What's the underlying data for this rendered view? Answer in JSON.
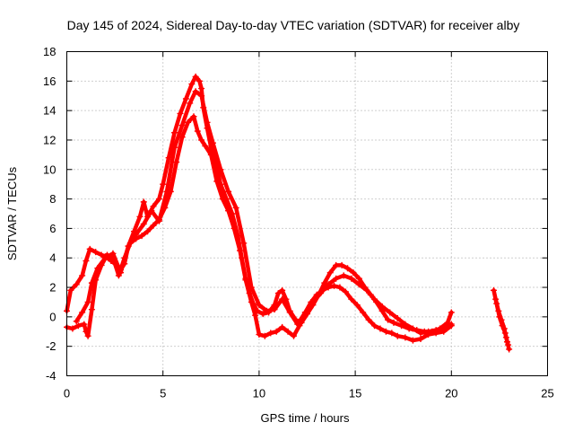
{
  "chart_data": {
    "type": "scatter",
    "title": "Day 145 of 2024, Sidereal Day-to-day VTEC variation (SDTVAR) for receiver alby",
    "xlabel": "GPS time / hours",
    "ylabel": "SDTVAR / TECUs",
    "xlim": [
      0,
      25
    ],
    "ylim": [
      -4,
      18
    ],
    "xticks": [
      0,
      5,
      10,
      15,
      20,
      25
    ],
    "yticks": [
      -4,
      -2,
      0,
      2,
      4,
      6,
      8,
      10,
      12,
      14,
      16,
      18
    ],
    "grid": true,
    "marker": "+",
    "color": "#ff0000",
    "series": [
      {
        "name": "trace-a",
        "x": [
          0.0,
          0.2,
          0.5,
          0.8,
          1.0,
          1.2,
          1.5,
          1.8,
          2.0,
          2.3,
          2.6,
          2.8,
          3.0,
          3.2,
          3.5,
          3.8,
          4.0,
          4.2,
          4.5,
          4.8,
          5.0,
          5.3,
          5.6,
          5.9,
          6.2,
          6.5,
          6.7,
          6.9,
          7.0,
          7.1,
          7.3,
          7.5,
          7.8,
          8.0,
          8.3,
          8.6,
          8.9,
          9.1,
          9.3,
          9.5,
          9.7,
          9.9,
          10.2,
          10.5,
          10.8,
          11.0,
          11.2,
          11.4,
          11.6,
          11.9,
          12.2,
          12.5,
          12.8,
          13.1,
          13.4,
          13.7,
          14.0,
          14.3,
          14.6,
          14.9,
          15.2,
          15.5,
          15.8,
          16.1,
          16.4,
          16.7,
          17.0,
          17.4,
          17.8,
          18.2,
          18.6,
          19.0,
          19.4,
          19.8,
          20.0
        ],
        "y": [
          0.4,
          1.8,
          2.2,
          2.8,
          3.8,
          4.6,
          4.4,
          4.2,
          4.1,
          3.8,
          3.5,
          3.2,
          3.6,
          4.8,
          5.8,
          6.8,
          7.8,
          6.8,
          7.5,
          8.0,
          9.0,
          10.8,
          12.5,
          13.8,
          14.8,
          15.8,
          16.3,
          16.0,
          15.5,
          14.2,
          12.8,
          11.5,
          10.2,
          9.0,
          8.0,
          7.0,
          5.5,
          4.0,
          2.6,
          1.6,
          0.9,
          0.4,
          0.2,
          0.3,
          0.8,
          1.6,
          1.8,
          1.2,
          0.4,
          -0.2,
          -0.4,
          0.2,
          0.8,
          1.5,
          2.3,
          3.0,
          3.5,
          3.5,
          3.3,
          3.0,
          2.6,
          2.0,
          1.5,
          1.0,
          0.4,
          -0.2,
          -0.4,
          -0.6,
          -0.8,
          -0.9,
          -1.0,
          -1.0,
          -0.8,
          -0.4,
          0.3
        ]
      },
      {
        "name": "trace-b",
        "x": [
          0.0,
          0.3,
          0.6,
          0.9,
          1.0,
          1.1,
          1.3,
          1.5,
          1.8,
          2.1,
          2.4,
          2.7,
          3.0,
          3.3,
          3.6,
          3.9,
          4.2,
          4.5,
          4.8,
          5.1,
          5.4,
          5.7,
          6.0,
          6.3,
          6.6,
          6.8,
          7.0,
          7.2,
          7.5,
          7.8,
          8.1,
          8.4,
          8.7,
          9.0,
          9.3,
          9.6,
          9.8,
          10.0,
          10.3,
          10.6,
          10.9,
          11.2,
          11.5,
          11.8,
          12.1,
          12.4,
          12.7,
          13.0,
          13.3,
          13.6,
          13.9,
          14.2,
          14.5,
          14.8,
          15.1,
          15.4,
          15.7,
          16.0,
          16.3,
          16.6,
          16.9,
          17.2,
          17.6,
          18.0,
          18.4,
          18.8,
          19.2,
          19.6,
          20.0
        ],
        "y": [
          -0.7,
          -0.8,
          -0.6,
          -0.5,
          -1.0,
          -1.3,
          0.5,
          2.5,
          3.5,
          4.2,
          4.0,
          2.8,
          4.0,
          5.0,
          5.3,
          5.5,
          5.8,
          6.2,
          6.6,
          7.4,
          8.5,
          10.5,
          12.2,
          13.2,
          13.6,
          12.6,
          12.0,
          11.6,
          11.0,
          9.2,
          8.0,
          7.2,
          6.0,
          4.5,
          2.5,
          1.0,
          0.1,
          -1.2,
          -1.3,
          -1.1,
          -1.0,
          -0.7,
          -1.0,
          -1.3,
          -0.6,
          0.3,
          1.0,
          1.5,
          1.8,
          2.0,
          2.1,
          2.0,
          1.7,
          1.2,
          0.8,
          0.3,
          -0.2,
          -0.6,
          -0.8,
          -1.0,
          -1.1,
          -1.3,
          -1.4,
          -1.6,
          -1.5,
          -1.2,
          -1.1,
          -1.0,
          -0.6
        ]
      },
      {
        "name": "trace-c",
        "x": [
          0.5,
          0.8,
          1.1,
          1.3,
          1.6,
          2.0,
          2.4,
          2.8,
          3.2,
          3.6,
          4.0,
          4.4,
          4.8,
          5.2,
          5.6,
          6.0,
          6.4,
          6.7,
          7.0,
          7.3,
          7.6,
          8.0,
          8.4,
          8.8,
          9.2,
          9.6,
          10.0,
          10.4,
          10.8,
          11.2,
          11.6,
          12.0,
          12.4,
          12.8,
          13.2,
          13.6,
          14.0,
          14.4,
          14.8,
          15.2,
          15.6,
          16.0,
          16.4,
          16.8,
          17.2,
          17.6,
          18.0,
          18.4,
          18.8,
          19.2,
          19.6,
          20.0
        ],
        "y": [
          -0.3,
          0.3,
          1.0,
          2.3,
          3.3,
          4.0,
          4.3,
          3.0,
          4.8,
          5.6,
          6.3,
          7.2,
          6.5,
          8.5,
          11.5,
          13.0,
          14.5,
          15.3,
          15.0,
          13.2,
          11.8,
          10.0,
          8.5,
          7.4,
          5.0,
          2.0,
          0.8,
          0.4,
          0.5,
          1.2,
          0.3,
          -0.5,
          0.3,
          1.0,
          1.6,
          2.2,
          2.6,
          2.8,
          2.6,
          2.2,
          1.8,
          1.2,
          0.7,
          0.3,
          -0.1,
          -0.5,
          -0.8,
          -1.1,
          -1.0,
          -0.9,
          -0.8,
          -0.5
        ]
      },
      {
        "name": "trace-d",
        "x": [
          22.2,
          22.35,
          22.5,
          22.65,
          22.8,
          22.9,
          23.0
        ],
        "y": [
          1.8,
          0.9,
          0.0,
          -0.6,
          -1.1,
          -1.7,
          -2.2
        ]
      },
      {
        "name": "trace-e",
        "x": [
          22.3,
          22.45,
          22.6,
          22.75,
          22.85,
          22.95
        ],
        "y": [
          1.2,
          0.4,
          -0.2,
          -0.8,
          -1.4,
          -1.9
        ]
      }
    ]
  }
}
